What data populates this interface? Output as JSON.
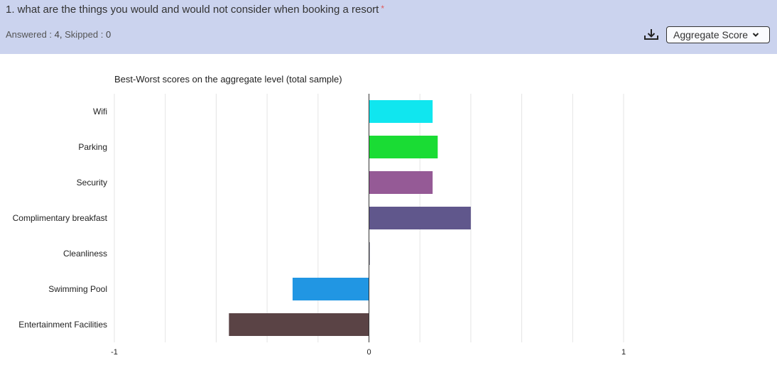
{
  "question": {
    "text": "1. what are the things you would and would not consider when booking a resort",
    "required_mark": "*"
  },
  "stats": {
    "answered_label": "Answered :",
    "answered_value": "4,",
    "skipped_label": "Skipped :",
    "skipped_value": "0"
  },
  "toolbar": {
    "download_icon": "download-icon",
    "view_select_label": "Aggregate Score"
  },
  "chart_data": {
    "type": "bar",
    "orientation": "horizontal",
    "title": "Best-Worst scores on the aggregate level (total sample)",
    "categories": [
      "Wifi",
      "Parking",
      "Security",
      "Complimentary breakfast",
      "Cleanliness",
      "Swimming Pool",
      "Entertainment Facilities"
    ],
    "values": [
      0.25,
      0.27,
      0.25,
      0.4,
      0.0,
      -0.3,
      -0.55
    ],
    "colors": [
      "#10e6ef",
      "#1adc34",
      "#955a96",
      "#60578c",
      "#3b3b55",
      "#2196e3",
      "#5a4345"
    ],
    "xlim": [
      -1,
      1
    ],
    "xticks": [
      "-1",
      "0",
      "1"
    ],
    "grid": true,
    "xlabel": "",
    "ylabel": ""
  }
}
